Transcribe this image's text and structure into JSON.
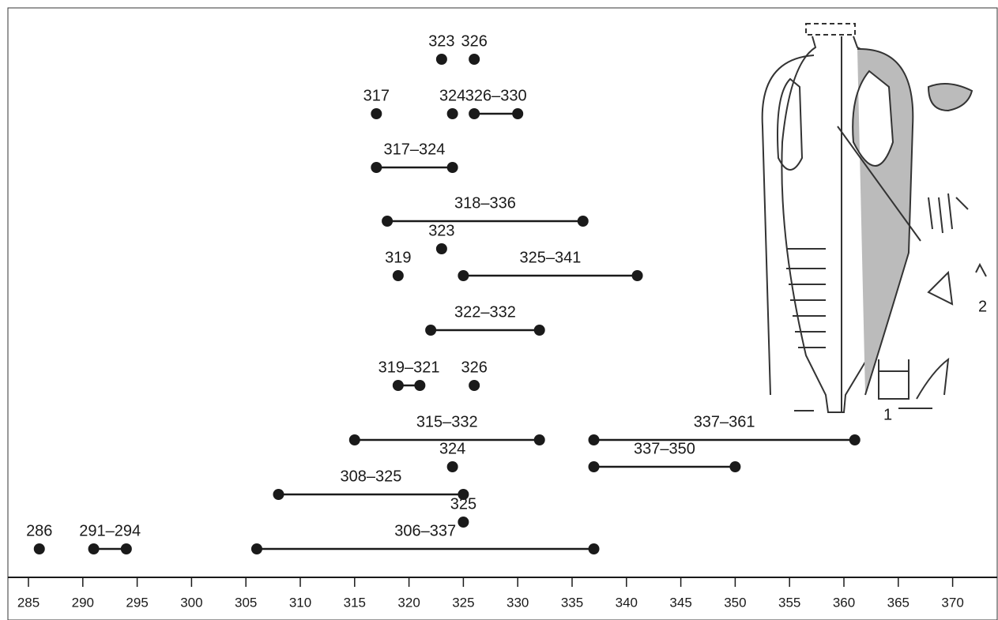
{
  "chart_data": {
    "type": "dumbbell",
    "xlim": [
      285,
      374
    ],
    "xticks": [
      285,
      290,
      295,
      300,
      305,
      310,
      315,
      320,
      325,
      330,
      335,
      340,
      345,
      350,
      355,
      360,
      365,
      370
    ],
    "color": "#1a1a1a",
    "rows": [
      [
        {
          "label": "323",
          "values": [
            323
          ]
        },
        {
          "label": "326",
          "values": [
            326
          ]
        }
      ],
      [
        {
          "label": "317",
          "values": [
            317
          ]
        },
        {
          "label": "324",
          "values": [
            324
          ]
        },
        {
          "label": "326–330",
          "values": [
            326,
            330
          ]
        }
      ],
      [
        {
          "label": "317–324",
          "values": [
            317,
            324
          ]
        }
      ],
      [
        {
          "label": "318–336",
          "values": [
            318,
            336
          ]
        }
      ],
      [
        {
          "label": "323",
          "values": [
            323
          ]
        }
      ],
      [
        {
          "label": "319",
          "values": [
            319
          ]
        },
        {
          "label": "325–341",
          "values": [
            325,
            341
          ]
        }
      ],
      [
        {
          "label": "322–332",
          "values": [
            322,
            332
          ]
        }
      ],
      [
        {
          "label": "319–321",
          "values": [
            319,
            321
          ]
        },
        {
          "label": "326",
          "values": [
            326
          ]
        }
      ],
      [
        {
          "label": "315–332",
          "values": [
            315,
            332
          ]
        },
        {
          "label": "337–361",
          "values": [
            337,
            361
          ]
        }
      ],
      [
        {
          "label": "324",
          "values": [
            324
          ]
        },
        {
          "label": "337–350",
          "values": [
            337,
            350
          ]
        }
      ],
      [
        {
          "label": "308–325",
          "values": [
            308,
            325
          ]
        }
      ],
      [
        {
          "label": "325",
          "values": [
            325
          ]
        }
      ],
      [
        {
          "label": "286",
          "values": [
            286
          ]
        },
        {
          "label": "291–294",
          "values": [
            291,
            294
          ]
        },
        {
          "label": "306–337",
          "values": [
            306,
            337
          ]
        }
      ]
    ]
  },
  "illustration": {
    "labels": [
      "1",
      "2"
    ]
  }
}
